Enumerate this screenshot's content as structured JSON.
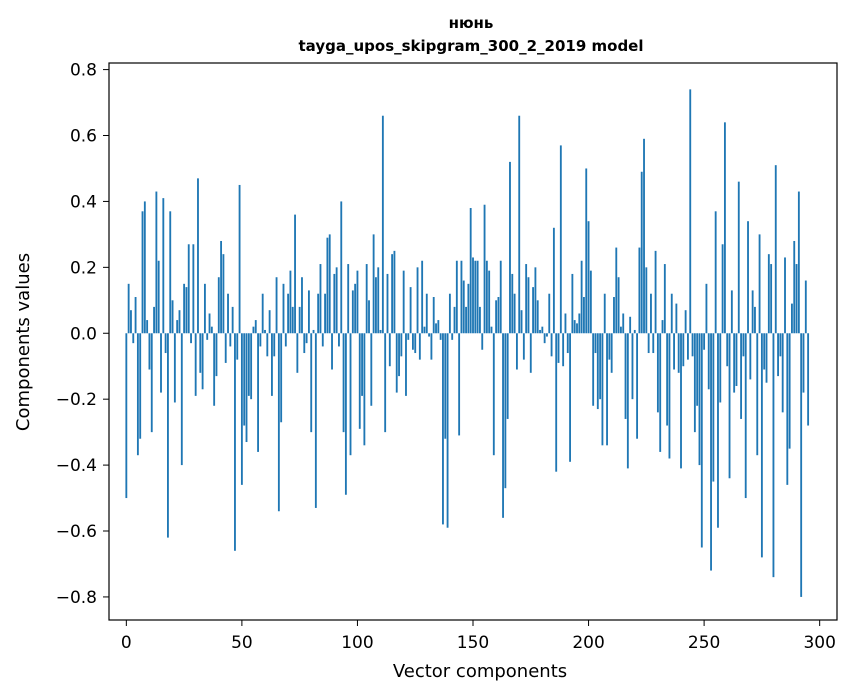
{
  "chart_data": {
    "type": "bar",
    "title_line1": "нюнь",
    "title_line2": "tayga_upos_skipgram_300_2_2019 model",
    "xlabel": "Vector components",
    "ylabel": "Components values",
    "xlim": [
      -7.5,
      307.5
    ],
    "ylim": [
      -0.87,
      0.82
    ],
    "xticks": [
      0,
      50,
      100,
      150,
      200,
      250,
      300
    ],
    "xtick_labels": [
      "0",
      "50",
      "100",
      "150",
      "200",
      "250",
      "300"
    ],
    "yticks": [
      -0.8,
      -0.6,
      -0.4,
      -0.2,
      0.0,
      0.2,
      0.4,
      0.6,
      0.8
    ],
    "ytick_labels": [
      "−0.8",
      "−0.6",
      "−0.4",
      "−0.2",
      "0.0",
      "0.2",
      "0.4",
      "0.6",
      "0.8"
    ],
    "bar_color": "#1f77b4",
    "grid": false,
    "values": [
      -0.5,
      0.15,
      0.07,
      -0.03,
      0.11,
      -0.37,
      -0.32,
      0.37,
      0.4,
      0.04,
      -0.11,
      -0.3,
      0.08,
      0.43,
      0.22,
      -0.18,
      0.41,
      -0.06,
      -0.62,
      0.37,
      0.1,
      -0.21,
      0.04,
      0.07,
      -0.4,
      0.15,
      0.14,
      0.27,
      -0.03,
      0.27,
      -0.19,
      0.47,
      -0.12,
      -0.17,
      0.15,
      -0.02,
      0.06,
      0.02,
      -0.22,
      -0.13,
      0.17,
      0.28,
      0.24,
      -0.09,
      0.12,
      -0.04,
      0.08,
      -0.66,
      -0.08,
      0.45,
      -0.46,
      -0.28,
      -0.33,
      -0.19,
      -0.2,
      0.02,
      0.04,
      -0.36,
      -0.04,
      0.12,
      0.01,
      -0.07,
      0.07,
      -0.19,
      -0.07,
      0.17,
      -0.54,
      -0.27,
      0.15,
      -0.04,
      0.12,
      0.19,
      0.08,
      0.36,
      -0.12,
      0.08,
      0.17,
      -0.06,
      -0.03,
      0.13,
      -0.3,
      0.01,
      -0.53,
      0.12,
      0.21,
      -0.04,
      0.12,
      0.29,
      0.3,
      -0.11,
      0.18,
      0.2,
      -0.04,
      0.4,
      -0.3,
      -0.49,
      0.21,
      -0.37,
      0.13,
      0.15,
      0.19,
      -0.29,
      -0.19,
      -0.34,
      0.21,
      0.1,
      -0.22,
      0.3,
      0.17,
      0.2,
      0.01,
      0.66,
      -0.3,
      0.18,
      -0.1,
      0.24,
      0.25,
      -0.18,
      -0.13,
      -0.07,
      0.19,
      -0.19,
      -0.02,
      0.14,
      -0.05,
      -0.06,
      0.2,
      -0.08,
      0.22,
      0.02,
      0.12,
      -0.01,
      -0.08,
      0.11,
      0.03,
      0.04,
      -0.02,
      -0.58,
      -0.32,
      -0.59,
      0.12,
      -0.02,
      0.08,
      0.22,
      -0.31,
      0.22,
      0.16,
      0.08,
      0.15,
      0.38,
      0.23,
      0.22,
      0.22,
      0.08,
      -0.05,
      0.39,
      0.22,
      0.19,
      0.02,
      -0.37,
      0.1,
      0.11,
      0.22,
      -0.56,
      -0.47,
      -0.26,
      0.52,
      0.18,
      0.12,
      -0.11,
      0.66,
      0.07,
      -0.08,
      0.21,
      0.17,
      -0.12,
      0.14,
      0.2,
      0.1,
      0.01,
      0.02,
      -0.03,
      -0.01,
      0.12,
      -0.07,
      0.32,
      -0.42,
      -0.09,
      0.57,
      -0.1,
      0.06,
      -0.06,
      -0.39,
      0.18,
      0.04,
      0.03,
      0.06,
      0.22,
      0.11,
      0.5,
      0.34,
      0.19,
      -0.22,
      -0.06,
      -0.23,
      -0.2,
      -0.34,
      0.12,
      -0.34,
      -0.08,
      -0.12,
      0.11,
      0.26,
      0.17,
      0.02,
      0.06,
      -0.26,
      -0.41,
      0.05,
      -0.2,
      0.01,
      -0.32,
      0.26,
      0.49,
      0.59,
      0.2,
      -0.06,
      0.12,
      -0.06,
      0.25,
      -0.24,
      -0.36,
      0.04,
      0.21,
      -0.28,
      -0.38,
      0.12,
      -0.11,
      0.09,
      -0.12,
      -0.41,
      -0.1,
      0.07,
      -0.08,
      0.74,
      -0.07,
      -0.3,
      -0.22,
      -0.4,
      -0.65,
      -0.05,
      0.15,
      -0.17,
      -0.72,
      -0.45,
      0.37,
      -0.59,
      -0.21,
      0.27,
      0.64,
      -0.1,
      -0.44,
      0.13,
      -0.18,
      -0.16,
      0.46,
      -0.26,
      -0.07,
      -0.5,
      0.34,
      -0.14,
      0.13,
      0.08,
      -0.37,
      0.3,
      -0.68,
      -0.11,
      -0.15,
      0.24,
      0.21,
      -0.74,
      0.51,
      -0.13,
      -0.07,
      -0.24,
      0.23,
      -0.46,
      -0.35,
      0.09,
      0.28,
      0.21,
      0.43,
      -0.8,
      -0.18,
      0.16,
      -0.28
    ]
  }
}
